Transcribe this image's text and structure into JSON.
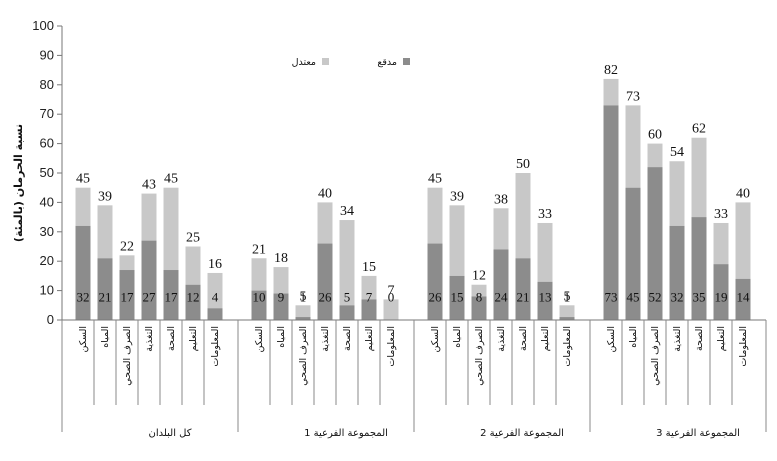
{
  "chart_data": {
    "type": "bar",
    "stacked": true,
    "ylabel": "نسبة الحرمان (بالمئة)",
    "ylim": [
      0,
      100
    ],
    "yticks": [
      0,
      10,
      20,
      30,
      40,
      50,
      60,
      70,
      80,
      90,
      100
    ],
    "grid": false,
    "legend_position": "top-center",
    "colors": {
      "severe": "#8c8c8c",
      "moderate": "#c8c8c8"
    },
    "groups": [
      {
        "name": "كل البلدان",
        "categories": [
          "السكن",
          "المياه",
          "الصرف الصحي",
          "التغذية",
          "الصحة",
          "التعليم",
          "المعلومات"
        ],
        "severe": [
          32,
          21,
          17,
          27,
          17,
          12,
          4
        ],
        "total": [
          45,
          39,
          22,
          43,
          45,
          25,
          16
        ]
      },
      {
        "name": "المجموعة الفرعية 1",
        "categories": [
          "السكن",
          "المياه",
          "الصرف الصحي",
          "التغذية",
          "الصحة",
          "التعليم",
          "المعلومات"
        ],
        "severe": [
          10,
          9,
          1,
          26,
          5,
          7,
          0
        ],
        "total": [
          21,
          18,
          5,
          40,
          34,
          15,
          7
        ]
      },
      {
        "name": "المجموعة الفرعية 2",
        "categories": [
          "السكن",
          "المياه",
          "الصرف الصحي",
          "التغذية",
          "الصحة",
          "التعليم",
          "المعلومات"
        ],
        "severe": [
          26,
          15,
          8,
          24,
          21,
          13,
          1
        ],
        "total": [
          45,
          39,
          12,
          38,
          50,
          33,
          5
        ]
      },
      {
        "name": "المجموعة الفرعية 3",
        "categories": [
          "السكن",
          "المياه",
          "الصرف الصحي",
          "التغذية",
          "الصحة",
          "التعليم",
          "المعلومات"
        ],
        "severe": [
          73,
          45,
          52,
          32,
          35,
          19,
          14
        ],
        "total": [
          82,
          73,
          60,
          54,
          62,
          33,
          40
        ]
      }
    ],
    "series": [
      {
        "name": "مدقع",
        "key": "severe"
      },
      {
        "name": "معتدل",
        "key": "moderate"
      }
    ]
  }
}
